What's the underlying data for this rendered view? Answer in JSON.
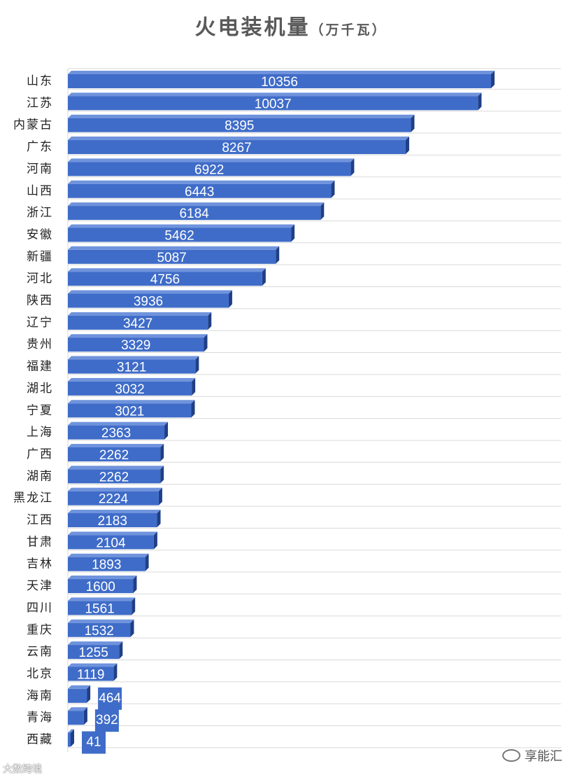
{
  "title": "火电装机量",
  "unit": "（万千瓦）",
  "watermark_left": "大数跨境",
  "watermark_right": "享能汇",
  "colors": {
    "bar": "#3f6cc8",
    "bar_side": "#1f3f86",
    "bar_top": "#6f93dc",
    "grid": "#d9d9d9"
  },
  "chart_data": {
    "type": "bar",
    "orientation": "horizontal",
    "title": "火电装机量（万千瓦）",
    "categories": [
      "山东",
      "江苏",
      "内蒙古",
      "广东",
      "河南",
      "山西",
      "浙江",
      "安徽",
      "新疆",
      "河北",
      "陕西",
      "辽宁",
      "贵州",
      "福建",
      "湖北",
      "宁夏",
      "上海",
      "广西",
      "湖南",
      "黑龙江",
      "江西",
      "甘肃",
      "吉林",
      "天津",
      "四川",
      "重庆",
      "云南",
      "北京",
      "海南",
      "青海",
      "西藏"
    ],
    "values": [
      10356,
      10037,
      8395,
      8267,
      6922,
      6443,
      6184,
      5462,
      5087,
      4756,
      3936,
      3427,
      3329,
      3121,
      3032,
      3021,
      2363,
      2262,
      2262,
      2224,
      2183,
      2104,
      1893,
      1600,
      1561,
      1532,
      1255,
      1119,
      464,
      392,
      41
    ],
    "xlim": [
      0,
      12000
    ],
    "grid": true,
    "legend": "none"
  }
}
